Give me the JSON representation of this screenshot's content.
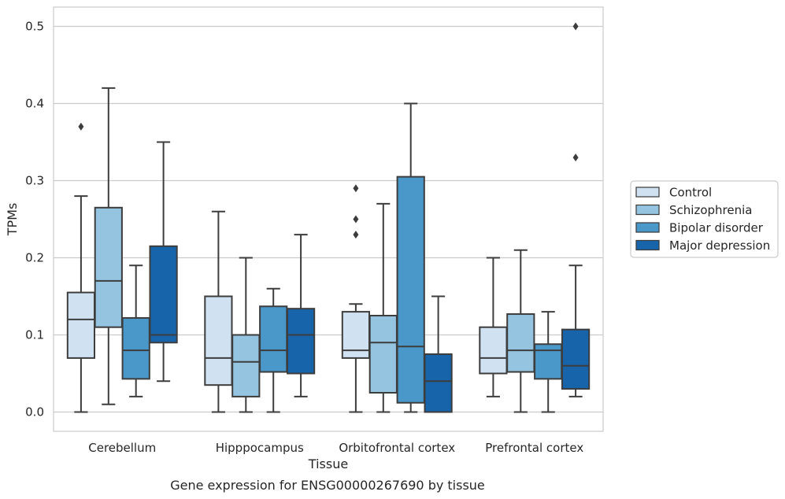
{
  "chart_data": {
    "type": "box",
    "title": "",
    "caption": "Gene expression for ENSG00000267690 by tissue",
    "xlabel": "Tissue",
    "ylabel": "TPMs",
    "ylim": [
      -0.025,
      0.525
    ],
    "yticks": [
      "0.0",
      "0.1",
      "0.2",
      "0.3",
      "0.4",
      "0.5"
    ],
    "grid": "horizontal",
    "legend_position": "right, outside plot",
    "categories": [
      "Cerebellum",
      "Hipppocampus",
      "Orbitofrontal cortex",
      "Prefrontal cortex"
    ],
    "series": [
      {
        "name": "Control",
        "color": "#d0e1f2",
        "boxes": [
          {
            "whislo": 0.0,
            "q1": 0.07,
            "med": 0.12,
            "q3": 0.155,
            "whishi": 0.28,
            "fliers": [
              0.37
            ]
          },
          {
            "whislo": 0.0,
            "q1": 0.035,
            "med": 0.07,
            "q3": 0.15,
            "whishi": 0.26,
            "fliers": []
          },
          {
            "whislo": 0.0,
            "q1": 0.07,
            "med": 0.08,
            "q3": 0.13,
            "whishi": 0.14,
            "fliers": [
              0.23,
              0.25,
              0.29
            ]
          },
          {
            "whislo": 0.02,
            "q1": 0.05,
            "med": 0.07,
            "q3": 0.11,
            "whishi": 0.2,
            "fliers": []
          }
        ]
      },
      {
        "name": "Schizophrenia",
        "color": "#94c4df",
        "boxes": [
          {
            "whislo": 0.01,
            "q1": 0.11,
            "med": 0.17,
            "q3": 0.265,
            "whishi": 0.42,
            "fliers": []
          },
          {
            "whislo": 0.0,
            "q1": 0.02,
            "med": 0.065,
            "q3": 0.1,
            "whishi": 0.2,
            "fliers": []
          },
          {
            "whislo": 0.0,
            "q1": 0.025,
            "med": 0.09,
            "q3": 0.125,
            "whishi": 0.27,
            "fliers": []
          },
          {
            "whislo": 0.0,
            "q1": 0.052,
            "med": 0.08,
            "q3": 0.127,
            "whishi": 0.21,
            "fliers": []
          }
        ]
      },
      {
        "name": "Bipolar disorder",
        "color": "#4a98c9",
        "boxes": [
          {
            "whislo": 0.02,
            "q1": 0.043,
            "med": 0.08,
            "q3": 0.122,
            "whishi": 0.19,
            "fliers": []
          },
          {
            "whislo": 0.0,
            "q1": 0.052,
            "med": 0.08,
            "q3": 0.137,
            "whishi": 0.16,
            "fliers": []
          },
          {
            "whislo": 0.0,
            "q1": 0.012,
            "med": 0.085,
            "q3": 0.305,
            "whishi": 0.4,
            "fliers": []
          },
          {
            "whislo": 0.0,
            "q1": 0.043,
            "med": 0.08,
            "q3": 0.088,
            "whishi": 0.13,
            "fliers": []
          }
        ]
      },
      {
        "name": "Major depression",
        "color": "#1764ab",
        "boxes": [
          {
            "whislo": 0.04,
            "q1": 0.09,
            "med": 0.1,
            "q3": 0.215,
            "whishi": 0.35,
            "fliers": []
          },
          {
            "whislo": 0.02,
            "q1": 0.05,
            "med": 0.1,
            "q3": 0.134,
            "whishi": 0.23,
            "fliers": []
          },
          {
            "whislo": 0.0,
            "q1": 0.0,
            "med": 0.04,
            "q3": 0.075,
            "whishi": 0.15,
            "fliers": []
          },
          {
            "whislo": 0.02,
            "q1": 0.03,
            "med": 0.06,
            "q3": 0.107,
            "whishi": 0.19,
            "fliers": [
              0.33,
              0.5
            ]
          }
        ]
      }
    ]
  }
}
